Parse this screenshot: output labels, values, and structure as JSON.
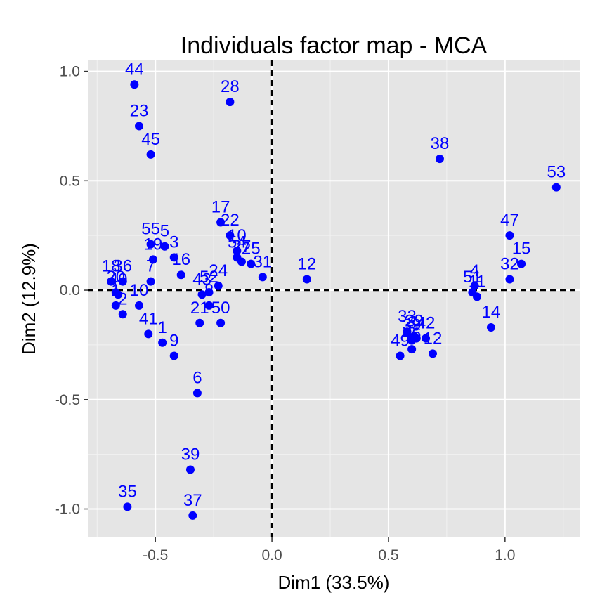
{
  "chart_data": {
    "type": "scatter",
    "title": "Individuals factor map - MCA",
    "xlabel": "Dim1 (33.5%)",
    "ylabel": "Dim2 (12.9%)",
    "xlim": [
      -0.79,
      1.32
    ],
    "ylim": [
      -1.13,
      1.05
    ],
    "x_ticks": [
      {
        "value": -0.5,
        "label": "-0.5"
      },
      {
        "value": 0.0,
        "label": "0.0"
      },
      {
        "value": 0.5,
        "label": "0.5"
      },
      {
        "value": 1.0,
        "label": "1.0"
      }
    ],
    "y_ticks": [
      {
        "value": -1.0,
        "label": "-1.0"
      },
      {
        "value": -0.5,
        "label": "-0.5"
      },
      {
        "value": 0.0,
        "label": "0.0"
      },
      {
        "value": 0.5,
        "label": "0.5"
      },
      {
        "value": 1.0,
        "label": "1.0"
      }
    ],
    "grid": true,
    "reference_lines": {
      "x": 0,
      "y": 0,
      "style": "dashed"
    },
    "colors": {
      "point": "#0000ff",
      "label": "#0000ff",
      "panel": "#e5e5e5",
      "grid": "#ffffff"
    },
    "points": [
      {
        "label": "44",
        "x": -0.59,
        "y": 0.94
      },
      {
        "label": "28",
        "x": -0.18,
        "y": 0.86
      },
      {
        "label": "23",
        "x": -0.57,
        "y": 0.75
      },
      {
        "label": "45",
        "x": -0.52,
        "y": 0.62
      },
      {
        "label": "38",
        "x": 0.72,
        "y": 0.6
      },
      {
        "label": "53",
        "x": 1.22,
        "y": 0.47
      },
      {
        "label": "17",
        "x": -0.22,
        "y": 0.31
      },
      {
        "label": "22",
        "x": -0.18,
        "y": 0.25
      },
      {
        "label": "47",
        "x": 1.02,
        "y": 0.25
      },
      {
        "label": "55",
        "x": -0.52,
        "y": 0.21
      },
      {
        "label": "5",
        "x": -0.46,
        "y": 0.2
      },
      {
        "label": "10",
        "x": -0.15,
        "y": 0.18
      },
      {
        "label": "19",
        "x": -0.51,
        "y": 0.14
      },
      {
        "label": "3",
        "x": -0.42,
        "y": 0.15
      },
      {
        "label": "54",
        "x": -0.15,
        "y": 0.15
      },
      {
        "label": "27",
        "x": -0.13,
        "y": 0.13
      },
      {
        "label": "25",
        "x": -0.09,
        "y": 0.12
      },
      {
        "label": "15",
        "x": 1.07,
        "y": 0.12
      },
      {
        "label": "16",
        "x": -0.39,
        "y": 0.07
      },
      {
        "label": "31",
        "x": -0.04,
        "y": 0.06
      },
      {
        "label": "12",
        "x": 0.15,
        "y": 0.05
      },
      {
        "label": "32",
        "x": 1.02,
        "y": 0.05
      },
      {
        "label": "7",
        "x": -0.52,
        "y": 0.04
      },
      {
        "label": "18",
        "x": -0.69,
        "y": 0.04
      },
      {
        "label": "36",
        "x": -0.64,
        "y": 0.04
      },
      {
        "label": "24",
        "x": -0.23,
        "y": 0.02
      },
      {
        "label": "4",
        "x": 0.87,
        "y": 0.02
      },
      {
        "label": "51",
        "x": 0.86,
        "y": -0.01
      },
      {
        "label": "20",
        "x": -0.67,
        "y": -0.01
      },
      {
        "label": "43",
        "x": -0.3,
        "y": -0.02
      },
      {
        "label": "52",
        "x": -0.27,
        "y": -0.01
      },
      {
        "label": "40",
        "x": -0.66,
        "y": -0.02
      },
      {
        "label": "11",
        "x": 0.88,
        "y": -0.03
      },
      {
        "label": "10",
        "x": -0.57,
        "y": -0.07
      },
      {
        "label": "8",
        "x": -0.27,
        "y": -0.07
      },
      {
        "label": "1",
        "x": -0.67,
        "y": -0.07
      },
      {
        "label": "2",
        "x": -0.64,
        "y": -0.11
      },
      {
        "label": "21",
        "x": -0.31,
        "y": -0.15
      },
      {
        "label": "50",
        "x": -0.22,
        "y": -0.15
      },
      {
        "label": "14",
        "x": 0.94,
        "y": -0.17
      },
      {
        "label": "33",
        "x": 0.58,
        "y": -0.19
      },
      {
        "label": "29",
        "x": 0.61,
        "y": -0.21
      },
      {
        "label": "39",
        "x": 0.6,
        "y": -0.23
      },
      {
        "label": "34",
        "x": 0.62,
        "y": -0.22
      },
      {
        "label": "42",
        "x": 0.66,
        "y": -0.22
      },
      {
        "label": "41",
        "x": -0.53,
        "y": -0.2
      },
      {
        "label": "1",
        "x": -0.47,
        "y": -0.24
      },
      {
        "label": "9",
        "x": -0.42,
        "y": -0.3
      },
      {
        "label": "49",
        "x": 0.55,
        "y": -0.3
      },
      {
        "label": "46",
        "x": 0.6,
        "y": -0.27
      },
      {
        "label": "12",
        "x": 0.69,
        "y": -0.29
      },
      {
        "label": "6",
        "x": -0.32,
        "y": -0.47
      },
      {
        "label": "39",
        "x": -0.35,
        "y": -0.82
      },
      {
        "label": "35",
        "x": -0.62,
        "y": -0.99
      },
      {
        "label": "37",
        "x": -0.34,
        "y": -1.03
      }
    ]
  }
}
